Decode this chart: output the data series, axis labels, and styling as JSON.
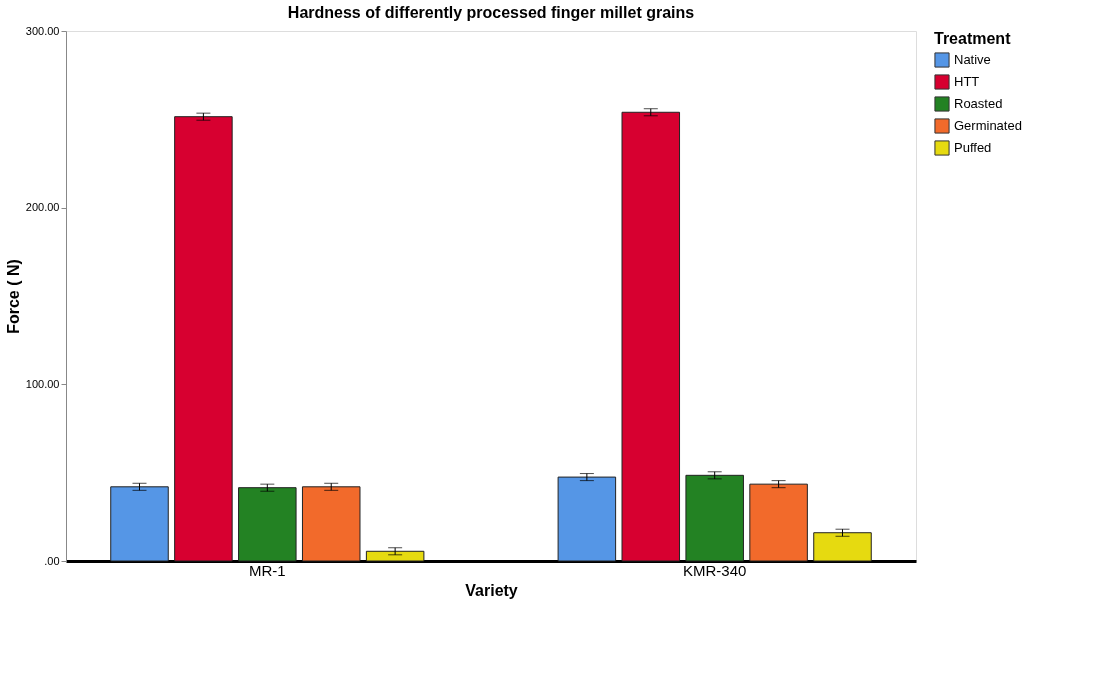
{
  "chart_data": {
    "type": "bar",
    "title": "Hardness of differently processed finger millet grains",
    "xlabel": "Variety",
    "ylabel": "Force ( N)",
    "legend_title": "Treatment",
    "legend": "top right",
    "grid": false,
    "categories": [
      "MR-1",
      "KMR-340"
    ],
    "ylim": [
      0,
      300
    ],
    "yticks": [
      {
        "value": 0,
        "label": ".00"
      },
      {
        "value": 100,
        "label": "100.00"
      },
      {
        "value": 200,
        "label": "200.00"
      },
      {
        "value": 300,
        "label": "300.00"
      }
    ],
    "series": [
      {
        "name": "Native",
        "color": "#5596e6",
        "values": [
          42,
          47.5
        ],
        "errors": [
          2,
          2
        ]
      },
      {
        "name": "HTT",
        "color": "#d70030",
        "values": [
          251.5,
          254
        ],
        "errors": [
          2,
          2
        ]
      },
      {
        "name": "Roasted",
        "color": "#238223",
        "values": [
          41.5,
          48.5
        ],
        "errors": [
          2,
          2
        ]
      },
      {
        "name": "Germinated",
        "color": "#f26a2b",
        "values": [
          42,
          43.5
        ],
        "errors": [
          2,
          2
        ]
      },
      {
        "name": "Puffed",
        "color": "#e6da10",
        "values": [
          5.5,
          16
        ],
        "errors": [
          2,
          2
        ]
      }
    ]
  }
}
